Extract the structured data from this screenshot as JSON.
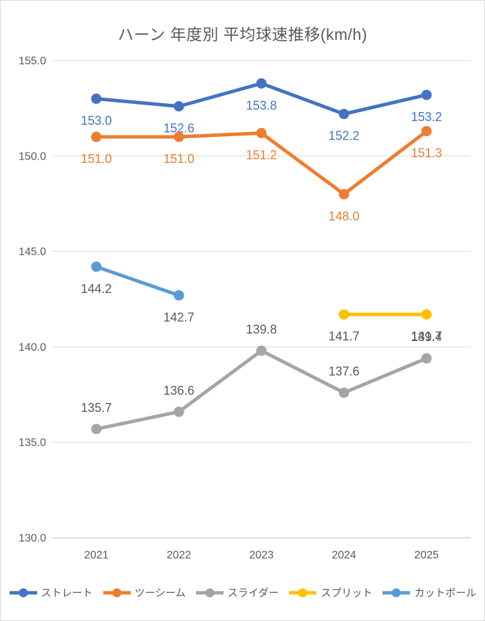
{
  "chart_data": {
    "type": "line",
    "title": "ハーン 年度別 平均球速推移(km/h)",
    "categories": [
      "2021",
      "2022",
      "2023",
      "2024",
      "2025"
    ],
    "series": [
      {
        "key": "straight",
        "name": "ストレート",
        "color": "#4472C4",
        "label_color": "#4472C4",
        "label_position": "below",
        "values": [
          153.0,
          152.6,
          153.8,
          152.2,
          153.2
        ]
      },
      {
        "key": "two-seam",
        "name": "ツーシーム",
        "color": "#ED7D31",
        "label_color": "#ED7D31",
        "label_position": "below",
        "values": [
          151.0,
          151.0,
          151.2,
          148.0,
          151.3
        ]
      },
      {
        "key": "slider",
        "name": "スライダー",
        "color": "#A5A5A5",
        "label_color": "#595959",
        "label_position": "above",
        "values": [
          135.7,
          136.6,
          139.8,
          137.6,
          139.4
        ]
      },
      {
        "key": "split",
        "name": "スプリット",
        "color": "#FFC000",
        "label_color": "#595959",
        "label_position": "below",
        "values": [
          null,
          null,
          null,
          141.7,
          141.7
        ]
      },
      {
        "key": "cutter",
        "name": "カットボール",
        "color": "#5B9BD5",
        "label_color": "#595959",
        "label_position": "below",
        "values": [
          144.2,
          142.7,
          null,
          null,
          null
        ]
      }
    ],
    "y_axis": {
      "tick_labels": [
        "155.0",
        "150.0",
        "145.0",
        "140.0",
        "135.0",
        "130.0"
      ],
      "min": 130.0,
      "max": 155.0
    },
    "grid": true,
    "legend_position": "bottom",
    "colors": {
      "grid_line": "#d9d9d9",
      "axis_line": "#bfbfbf",
      "axis_text": "#595959",
      "title_text": "#595959"
    }
  }
}
